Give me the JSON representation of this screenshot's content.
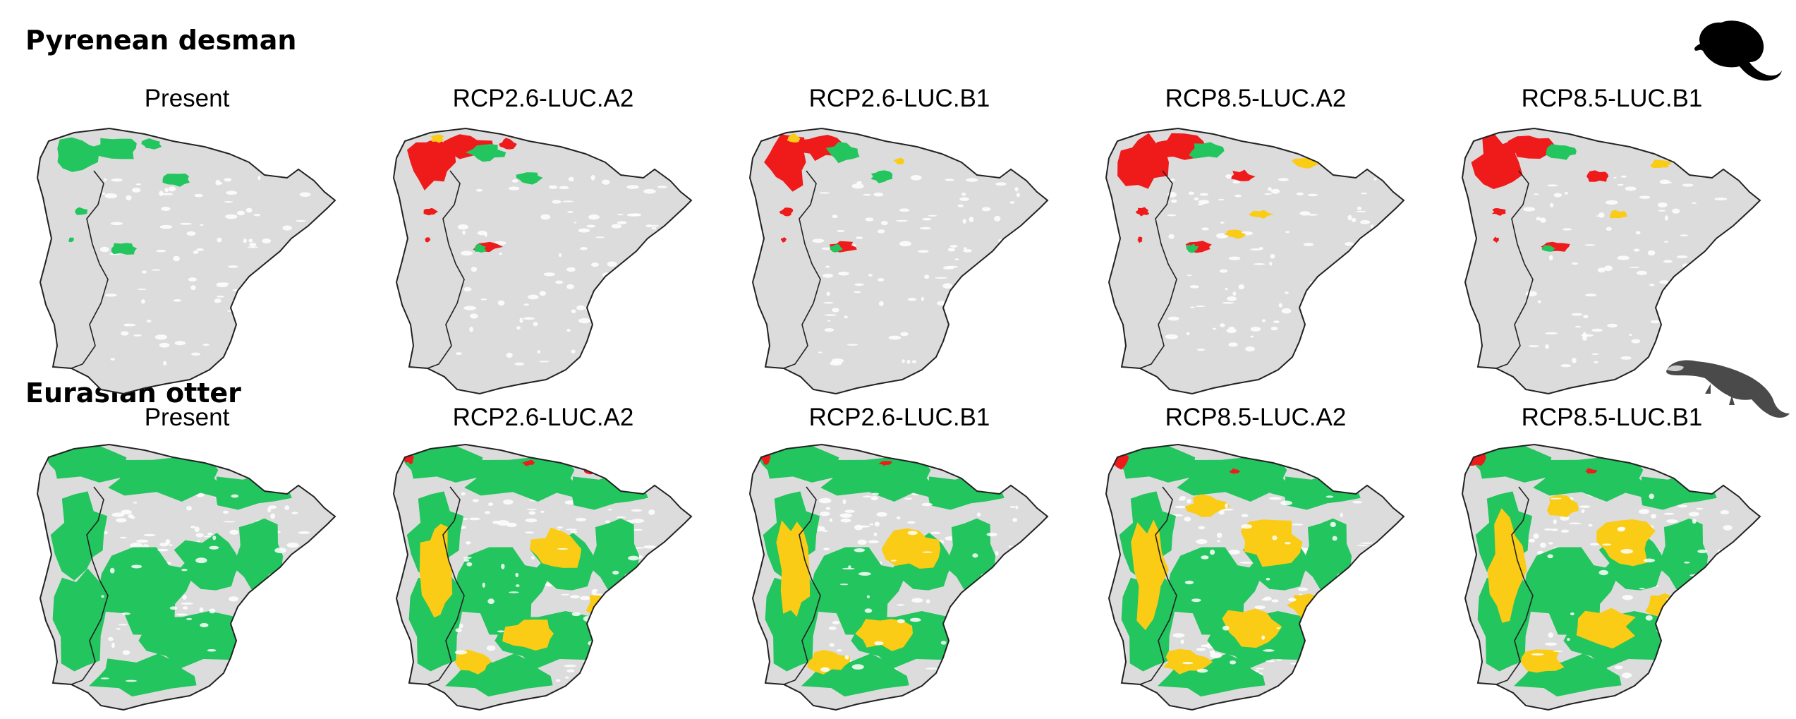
{
  "rows": [
    {
      "id": "desman",
      "species": "Pyrenean desman",
      "silhouette_icon": "desman-silhouette-icon",
      "panels": [
        {
          "scenario": "Present"
        },
        {
          "scenario": "RCP2.6-LUC.A2"
        },
        {
          "scenario": "RCP2.6-LUC.B1"
        },
        {
          "scenario": "RCP8.5-LUC.A2"
        },
        {
          "scenario": "RCP8.5-LUC.B1"
        }
      ]
    },
    {
      "id": "otter",
      "species": "Eurasian otter",
      "silhouette_icon": "otter-silhouette-icon",
      "panels": [
        {
          "scenario": "Present"
        },
        {
          "scenario": "RCP2.6-LUC.A2"
        },
        {
          "scenario": "RCP2.6-LUC.B1"
        },
        {
          "scenario": "RCP8.5-LUC.A2"
        },
        {
          "scenario": "RCP8.5-LUC.B1"
        }
      ]
    }
  ],
  "colors": {
    "background_land": "#dcdcdc",
    "present_range": "#22c55e",
    "stable_range": "#22c55e",
    "gain_range": "#facc15",
    "loss_range": "#ef1b1b",
    "border": "#222222"
  }
}
